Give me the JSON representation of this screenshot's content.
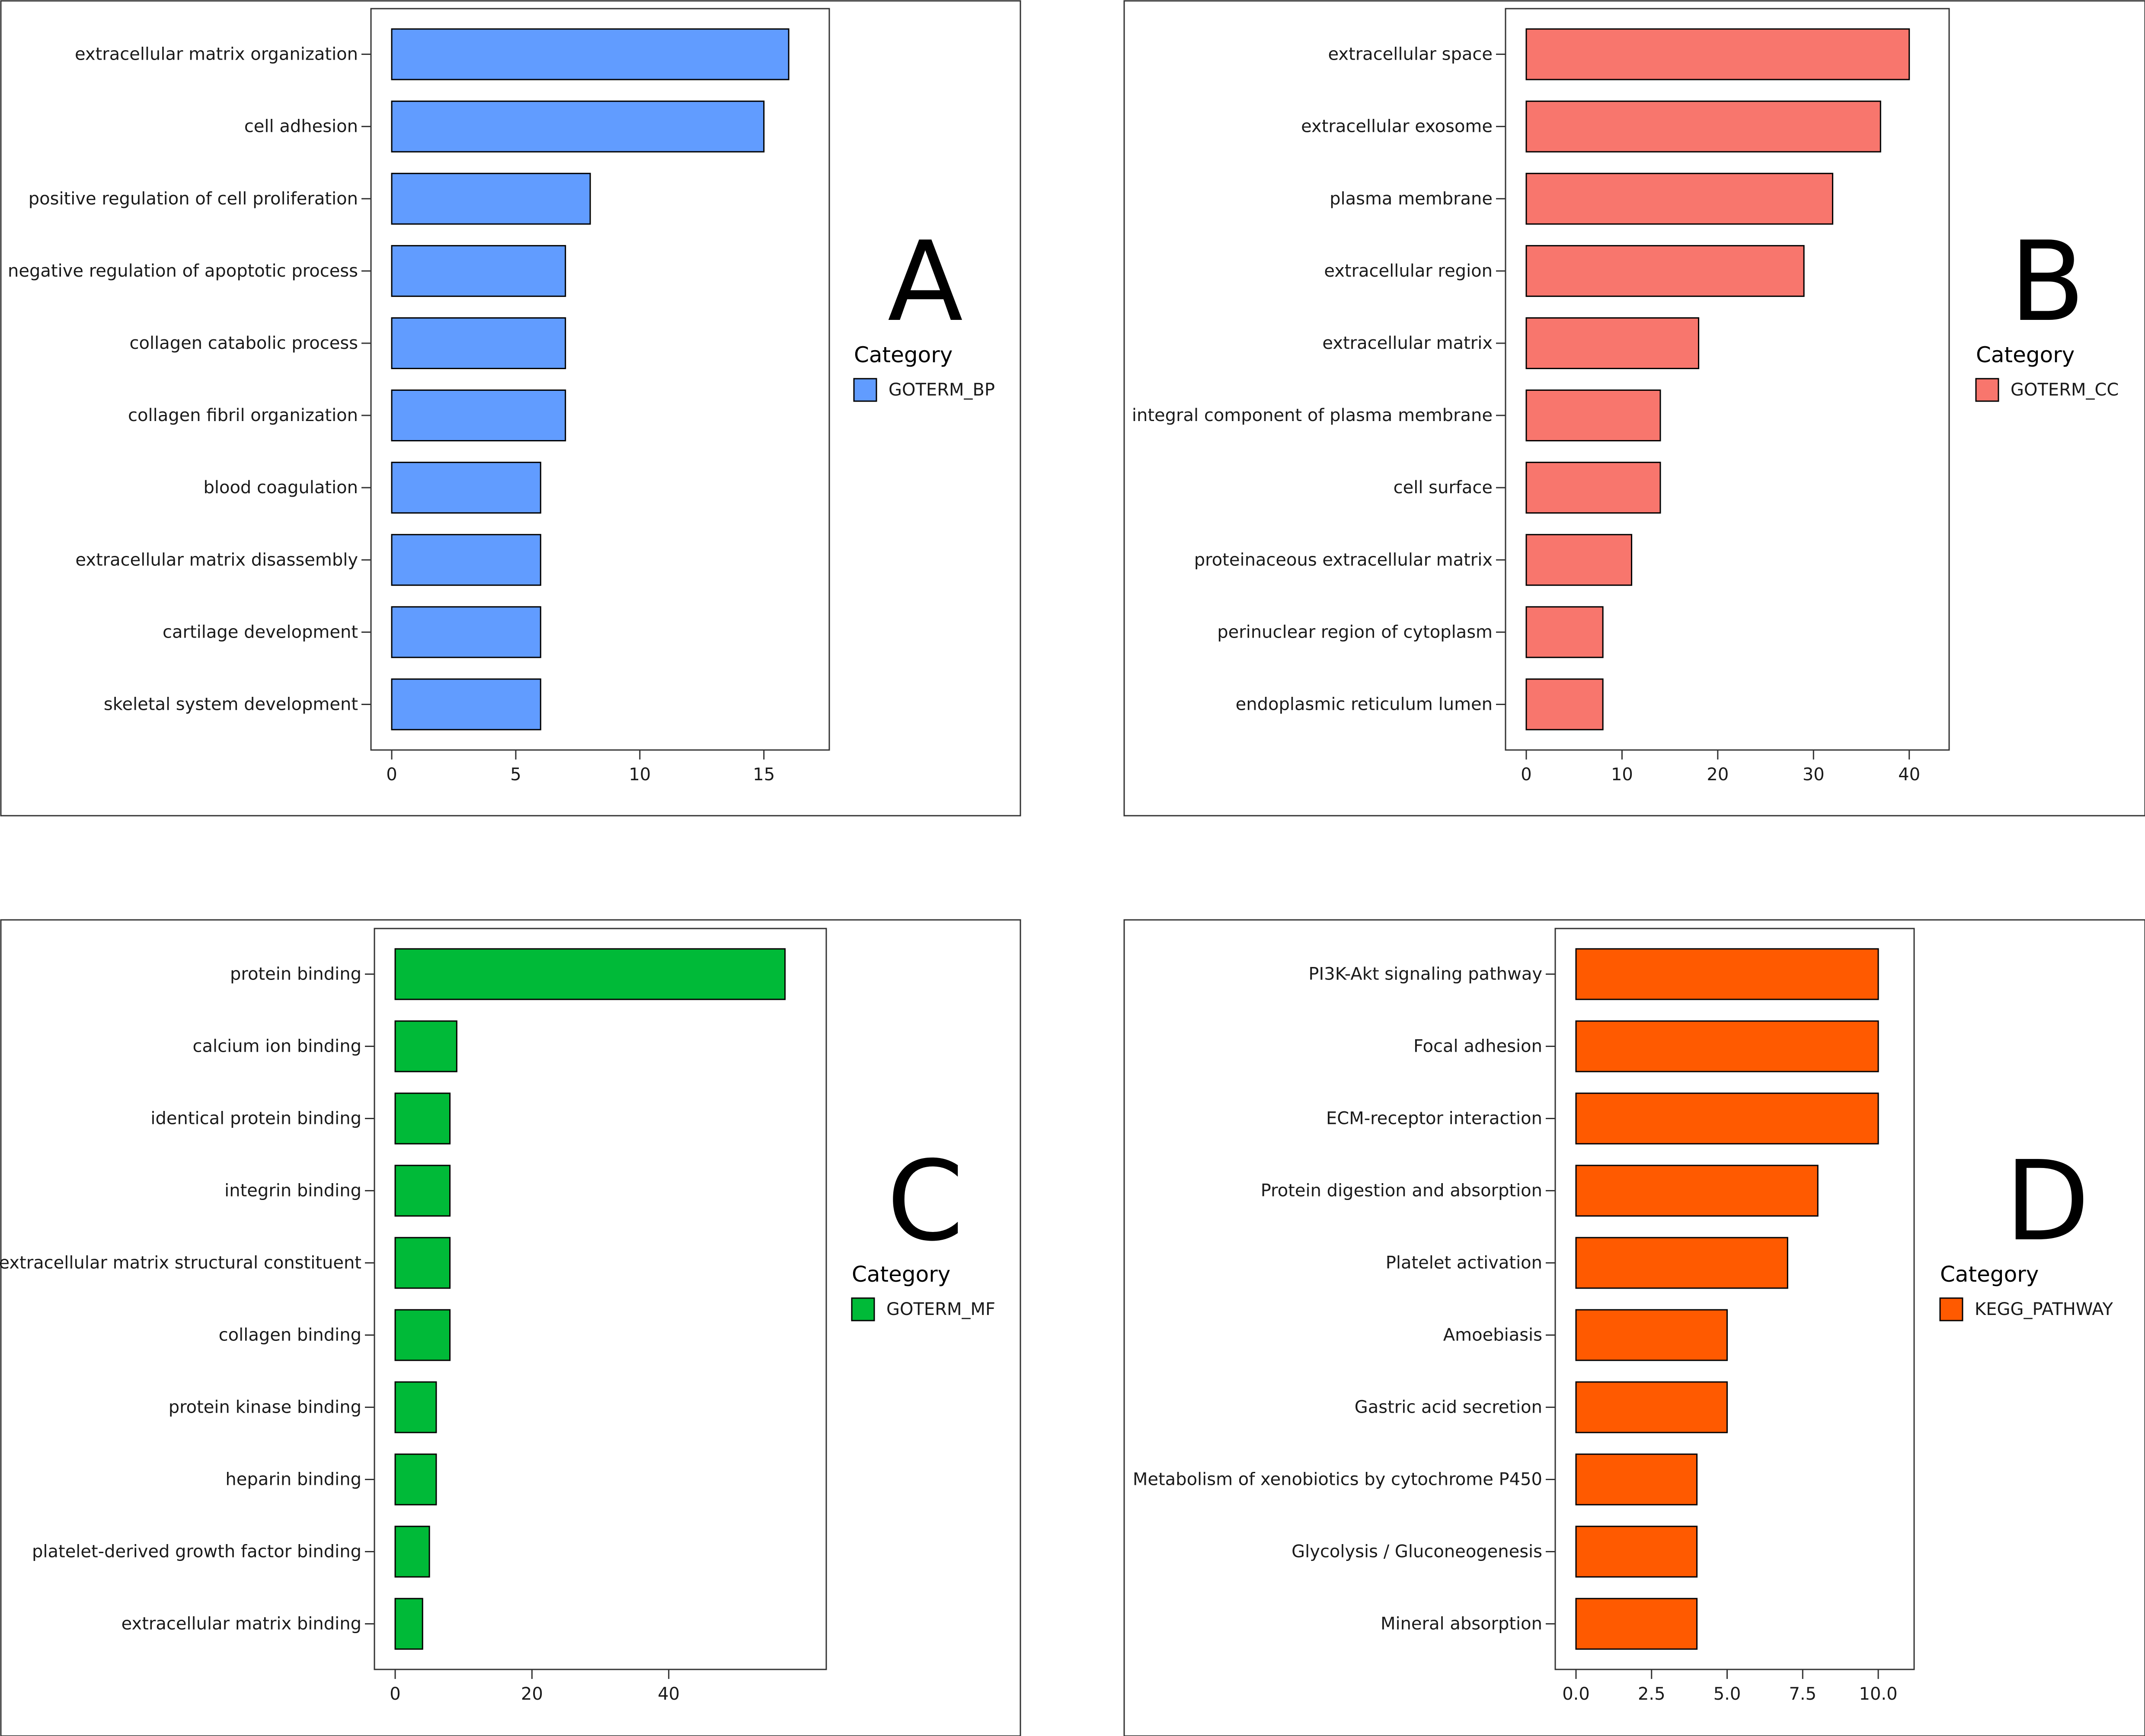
{
  "chart_data": [
    {
      "type": "bar",
      "orientation": "horizontal",
      "panel_label": "A",
      "categories": [
        "extracellular matrix organization",
        "cell adhesion",
        "positive regulation of cell proliferation",
        "negative regulation of apoptotic process",
        "collagen catabolic process",
        "collagen fibril organization",
        "blood coagulation",
        "extracellular matrix disassembly",
        "cartilage development",
        "skeletal system development"
      ],
      "values": [
        16,
        15,
        8,
        7,
        7,
        7,
        6,
        6,
        6,
        6
      ],
      "xlim": [
        0,
        16.8
      ],
      "xticks": [
        0,
        5,
        10,
        15
      ],
      "xtick_labels": [
        "0",
        "5",
        "10",
        "15"
      ],
      "color": "#619CFF",
      "legend_title": "Category",
      "legend_entry": "GOTERM_BP",
      "legend_position": "right",
      "grid": false
    },
    {
      "type": "bar",
      "orientation": "horizontal",
      "panel_label": "B",
      "categories": [
        "extracellular space",
        "extracellular exosome",
        "plasma membrane",
        "extracellular region",
        "extracellular matrix",
        "integral component of plasma membrane",
        "cell surface",
        "proteinaceous extracellular matrix",
        "perinuclear region of cytoplasm",
        "endoplasmic reticulum lumen"
      ],
      "values": [
        40,
        37,
        32,
        29,
        18,
        14,
        14,
        11,
        8,
        8
      ],
      "xlim": [
        0,
        42
      ],
      "xticks": [
        0,
        10,
        20,
        30,
        40
      ],
      "xtick_labels": [
        "0",
        "10",
        "20",
        "30",
        "40"
      ],
      "color": "#F8766D",
      "legend_title": "Category",
      "legend_entry": "GOTERM_CC",
      "legend_position": "right",
      "grid": false
    },
    {
      "type": "bar",
      "orientation": "horizontal",
      "panel_label": "C",
      "categories": [
        "protein binding",
        "calcium ion binding",
        "identical protein binding",
        "integrin binding",
        "extracellular matrix structural constituent",
        "collagen binding",
        "protein kinase binding",
        "heparin binding",
        "platelet-derived growth factor binding",
        "extracellular matrix binding"
      ],
      "values": [
        57,
        9,
        8,
        8,
        8,
        8,
        6,
        6,
        5,
        4
      ],
      "xlim": [
        0,
        60
      ],
      "xticks": [
        0,
        20,
        40
      ],
      "xtick_labels": [
        "0",
        "20",
        "40"
      ],
      "color": "#00BA38",
      "legend_title": "Category",
      "legend_entry": "GOTERM_MF",
      "legend_position": "right",
      "grid": false
    },
    {
      "type": "bar",
      "orientation": "horizontal",
      "panel_label": "D",
      "categories": [
        "PI3K-Akt signaling pathway",
        "Focal adhesion",
        "ECM-receptor interaction",
        "Protein digestion and absorption",
        "Platelet activation",
        "Amoebiasis",
        "Gastric acid secretion",
        "Metabolism of xenobiotics by cytochrome P450",
        "Glycolysis / Gluconeogenesis",
        "Mineral absorption"
      ],
      "values": [
        10,
        10,
        10,
        8,
        7,
        5,
        5,
        4,
        4,
        4
      ],
      "xlim": [
        0,
        10.5
      ],
      "xticks": [
        0,
        2.5,
        5,
        7.5,
        10
      ],
      "xtick_labels": [
        "0.0",
        "2.5",
        "5.0",
        "7.5",
        "10.0"
      ],
      "color": "#FF5A00",
      "legend_title": "Category",
      "legend_entry": "KEGG_PATHWAY",
      "legend_position": "right",
      "grid": false
    }
  ]
}
